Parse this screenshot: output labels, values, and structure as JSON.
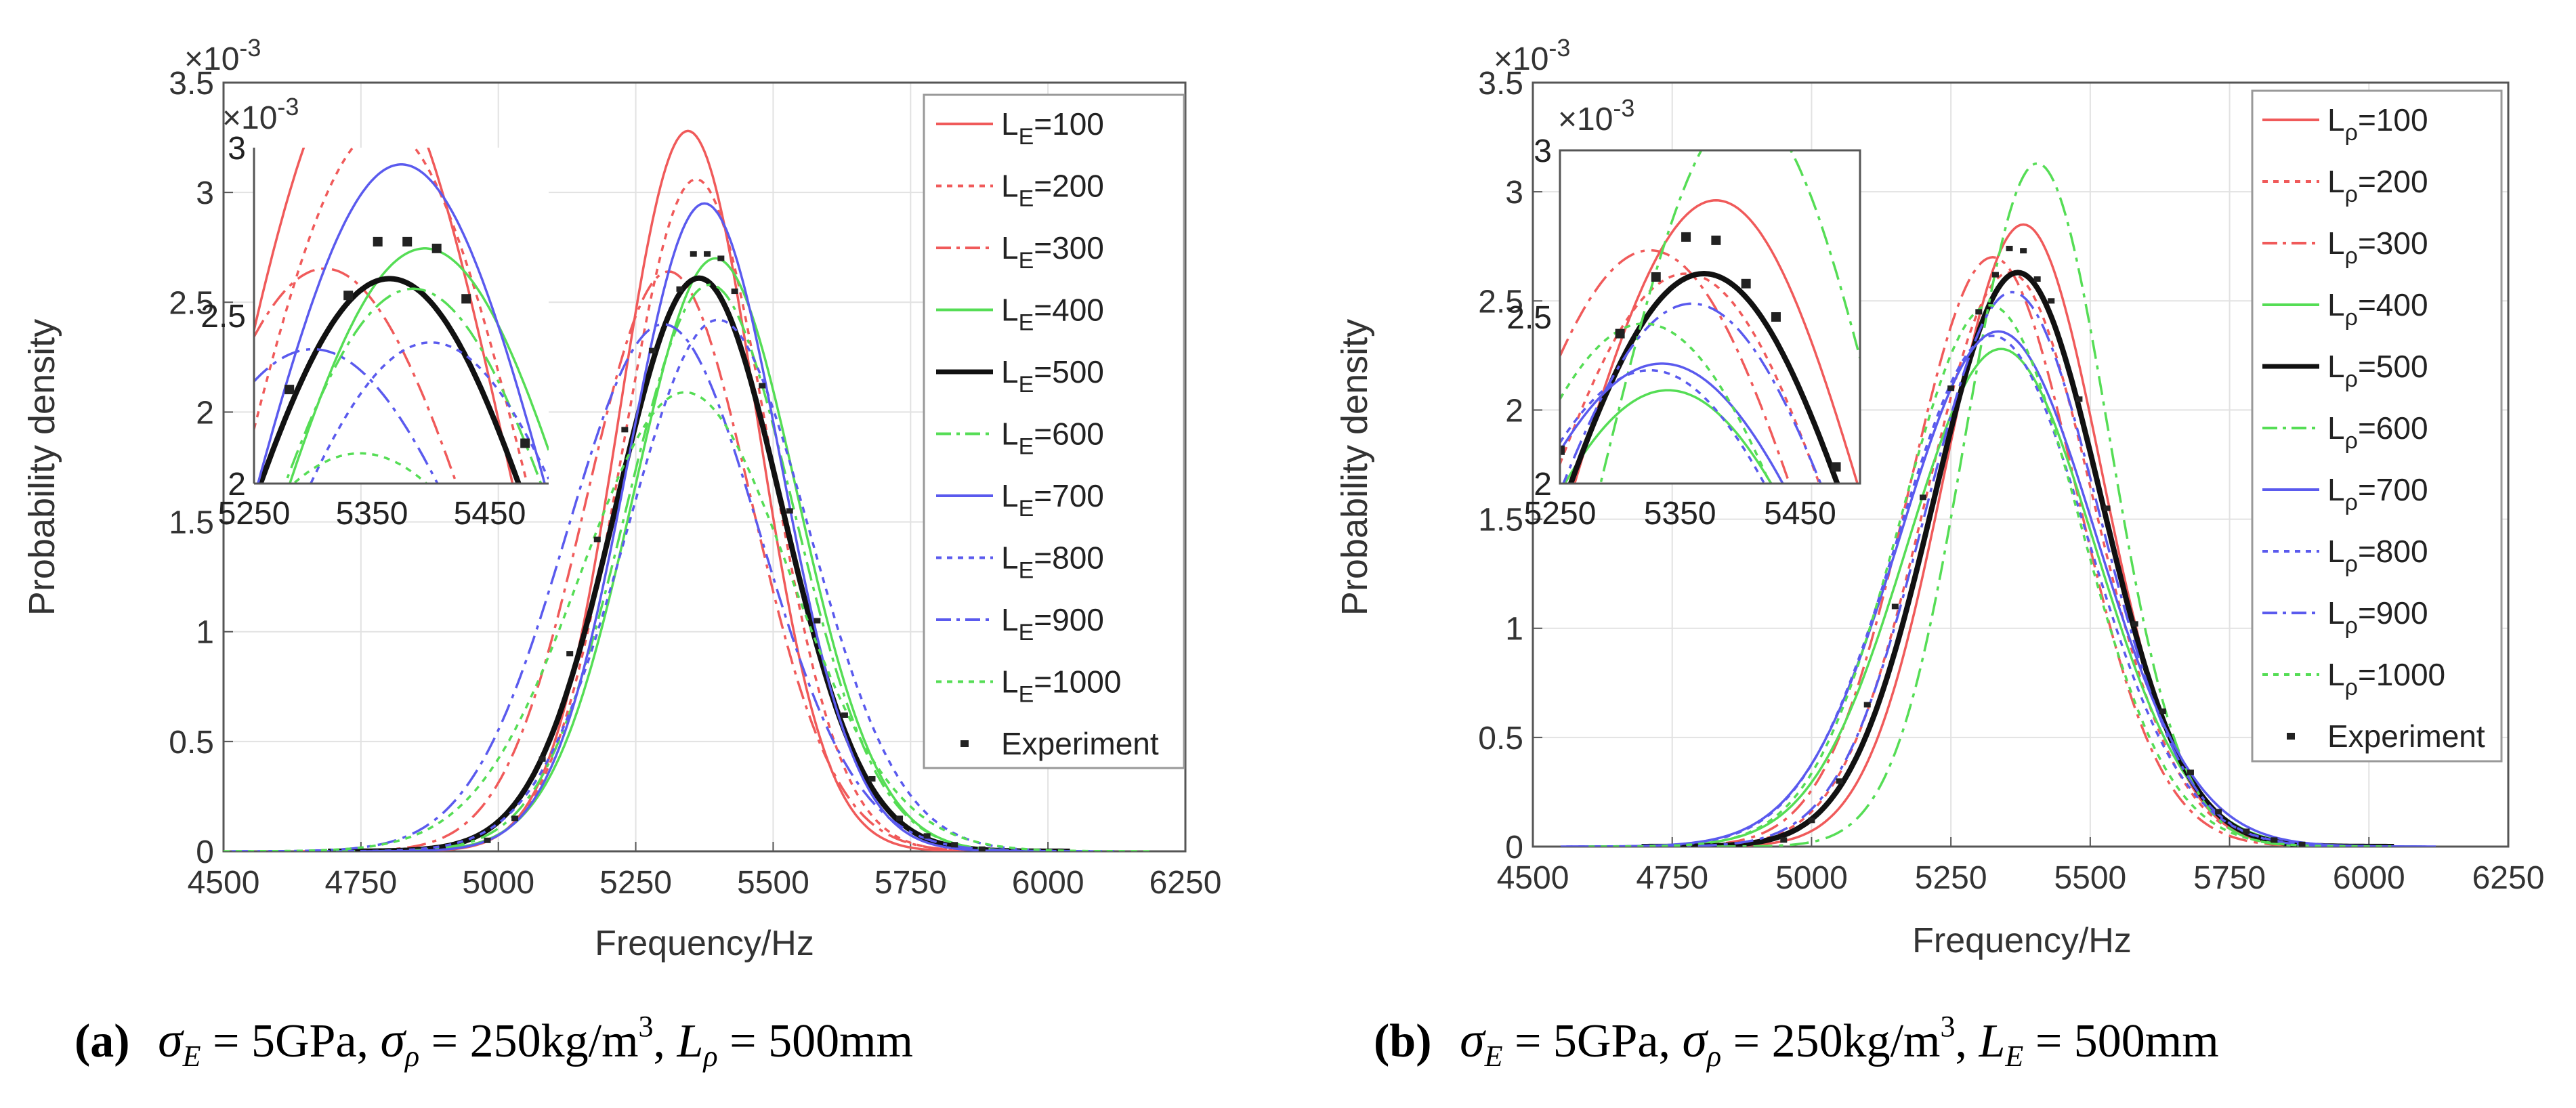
{
  "colors": {
    "red": "#f05a5a",
    "green": "#55dd55",
    "black": "#111111",
    "blue": "#5a5aee",
    "axis": "#555555",
    "grid": "#e2e2e2"
  },
  "chart_data": [
    {
      "type": "line",
      "title": "",
      "xlabel": "Frequency/Hz",
      "ylabel": "Probability density",
      "exponent_label": "×10",
      "exponent_power": "-3",
      "xlim": [
        4500,
        6250
      ],
      "ylim": [
        0,
        3.5
      ],
      "x_ticks": [
        "4500",
        "4750",
        "5000",
        "5250",
        "5500",
        "5750",
        "6000",
        "6250"
      ],
      "y_ticks": [
        "0",
        "0.5",
        "1",
        "1.5",
        "2",
        "2.5",
        "3",
        "3.5"
      ],
      "legend_position": "top-right",
      "legend_subscript": "E",
      "series": [
        {
          "name": "L",
          "sub": "E",
          "value": "=100",
          "color": "red",
          "style": "solid",
          "mean": 5345,
          "sd": 125,
          "peak": 3.28
        },
        {
          "name": "L",
          "sub": "E",
          "value": "=200",
          "color": "red",
          "style": "dot",
          "mean": 5360,
          "sd": 132,
          "peak": 3.06
        },
        {
          "name": "L",
          "sub": "E",
          "value": "=300",
          "color": "red",
          "style": "dashdot",
          "mean": 5310,
          "sd": 150,
          "peak": 2.64
        },
        {
          "name": "L",
          "sub": "E",
          "value": "=400",
          "color": "green",
          "style": "solid",
          "mean": 5395,
          "sd": 148,
          "peak": 2.7
        },
        {
          "name": "L",
          "sub": "E",
          "value": "=500",
          "color": "black",
          "style": "solid",
          "mean": 5365,
          "sd": 150,
          "peak": 2.61
        },
        {
          "name": "L",
          "sub": "E",
          "value": "=600",
          "color": "green",
          "style": "dashdot",
          "mean": 5385,
          "sd": 152,
          "peak": 2.58
        },
        {
          "name": "L",
          "sub": "E",
          "value": "=700",
          "color": "blue",
          "style": "solid",
          "mean": 5375,
          "sd": 138,
          "peak": 2.95
        },
        {
          "name": "L",
          "sub": "E",
          "value": "=800",
          "color": "blue",
          "style": "dot",
          "mean": 5400,
          "sd": 165,
          "peak": 2.42
        },
        {
          "name": "L",
          "sub": "E",
          "value": "=900",
          "color": "blue",
          "style": "dashdot",
          "mean": 5300,
          "sd": 175,
          "peak": 2.4
        },
        {
          "name": "L",
          "sub": "E",
          "value": "=1000",
          "color": "green",
          "style": "dot",
          "mean": 5340,
          "sd": 190,
          "peak": 2.09
        }
      ],
      "experiment": {
        "label": "Experiment",
        "x": [
          4980,
          5030,
          5080,
          5130,
          5180,
          5230,
          5280,
          5330,
          5355,
          5380,
          5405,
          5430,
          5480,
          5530,
          5580,
          5630,
          5680,
          5730,
          5780,
          5830,
          5880
        ],
        "y": [
          0.05,
          0.15,
          0.42,
          0.9,
          1.42,
          1.92,
          2.28,
          2.56,
          2.72,
          2.72,
          2.7,
          2.55,
          2.12,
          1.55,
          1.05,
          0.62,
          0.33,
          0.15,
          0.07,
          0.03,
          0.01
        ]
      },
      "inset": {
        "xlim": [
          5250,
          5500
        ],
        "ylim": [
          2,
          3
        ],
        "x_ticks": [
          "5250",
          "5350",
          "5450"
        ],
        "y_ticks": [
          "2",
          "2.5",
          "3"
        ],
        "exponent_label": "×10",
        "exponent_power": "-3"
      },
      "caption": {
        "label": "(a)",
        "formula_text": "σ_E = 5GPa, σ_ρ = 250kg/m^3, L_ρ = 500mm",
        "sigma": "σ",
        "sub_E": "E",
        "sub_rho": "ρ",
        "eq1": " = 5GPa, ",
        "eq2": " = 250kg/m",
        "sup3": "3",
        "comma": ", ",
        "L": "L",
        "eq3": " = 500mm"
      }
    },
    {
      "type": "line",
      "title": "",
      "xlabel": "Frequency/Hz",
      "ylabel": "Probability density",
      "exponent_label": "×10",
      "exponent_power": "-3",
      "xlim": [
        4500,
        6250
      ],
      "ylim": [
        0,
        3.5
      ],
      "x_ticks": [
        "4500",
        "4750",
        "5000",
        "5250",
        "5500",
        "5750",
        "6000",
        "6250"
      ],
      "y_ticks": [
        "0",
        "0.5",
        "1",
        "1.5",
        "2",
        "2.5",
        "3",
        "3.5"
      ],
      "legend_position": "top-right",
      "legend_subscript": "ρ",
      "series": [
        {
          "name": "L",
          "sub": "ρ",
          "value": "=100",
          "color": "red",
          "style": "solid",
          "mean": 5380,
          "sd": 140,
          "peak": 2.85
        },
        {
          "name": "L",
          "sub": "ρ",
          "value": "=200",
          "color": "red",
          "style": "dot",
          "mean": 5355,
          "sd": 150,
          "peak": 2.63
        },
        {
          "name": "L",
          "sub": "ρ",
          "value": "=300",
          "color": "red",
          "style": "dashdot",
          "mean": 5325,
          "sd": 150,
          "peak": 2.7
        },
        {
          "name": "L",
          "sub": "ρ",
          "value": "=400",
          "color": "green",
          "style": "solid",
          "mean": 5340,
          "sd": 168,
          "peak": 2.28
        },
        {
          "name": "L",
          "sub": "ρ",
          "value": "=500",
          "color": "black",
          "style": "solid",
          "mean": 5370,
          "sd": 150,
          "peak": 2.63
        },
        {
          "name": "L",
          "sub": "ρ",
          "value": "=600",
          "color": "green",
          "style": "dashdot",
          "mean": 5405,
          "sd": 128,
          "peak": 3.13
        },
        {
          "name": "L",
          "sub": "ρ",
          "value": "=700",
          "color": "blue",
          "style": "solid",
          "mean": 5335,
          "sd": 175,
          "peak": 2.36
        },
        {
          "name": "L",
          "sub": "ρ",
          "value": "=800",
          "color": "blue",
          "style": "dot",
          "mean": 5325,
          "sd": 170,
          "peak": 2.34
        },
        {
          "name": "L",
          "sub": "ρ",
          "value": "=900",
          "color": "blue",
          "style": "dashdot",
          "mean": 5360,
          "sd": 155,
          "peak": 2.54
        },
        {
          "name": "L",
          "sub": "ρ",
          "value": "=1000",
          "color": "green",
          "style": "dot",
          "mean": 5320,
          "sd": 160,
          "peak": 2.48
        }
      ],
      "experiment": {
        "label": "Experiment",
        "x": [
          4950,
          5000,
          5050,
          5100,
          5150,
          5200,
          5250,
          5300,
          5330,
          5355,
          5380,
          5405,
          5430,
          5480,
          5530,
          5580,
          5630,
          5680,
          5730,
          5780,
          5830,
          5880
        ],
        "y": [
          0.03,
          0.12,
          0.3,
          0.65,
          1.1,
          1.6,
          2.1,
          2.45,
          2.62,
          2.74,
          2.73,
          2.6,
          2.5,
          2.05,
          1.55,
          1.02,
          0.62,
          0.34,
          0.16,
          0.07,
          0.03,
          0.01
        ]
      },
      "inset": {
        "xlim": [
          5250,
          5500
        ],
        "ylim": [
          2,
          3
        ],
        "x_ticks": [
          "5250",
          "5350",
          "5450"
        ],
        "y_ticks": [
          "2",
          "2.5",
          "3"
        ],
        "exponent_label": "×10",
        "exponent_power": "-3"
      },
      "caption": {
        "label": "(b)",
        "formula_text": "σ_E = 5GPa, σ_ρ = 250kg/m^3, L_E = 500mm",
        "sigma": "σ",
        "sub_E": "E",
        "sub_rho": "ρ",
        "eq1": " = 5GPa, ",
        "eq2": " = 250kg/m",
        "sup3": "3",
        "comma": ", ",
        "L": "L",
        "sub_L": "E",
        "eq3": " = 500mm"
      }
    }
  ]
}
